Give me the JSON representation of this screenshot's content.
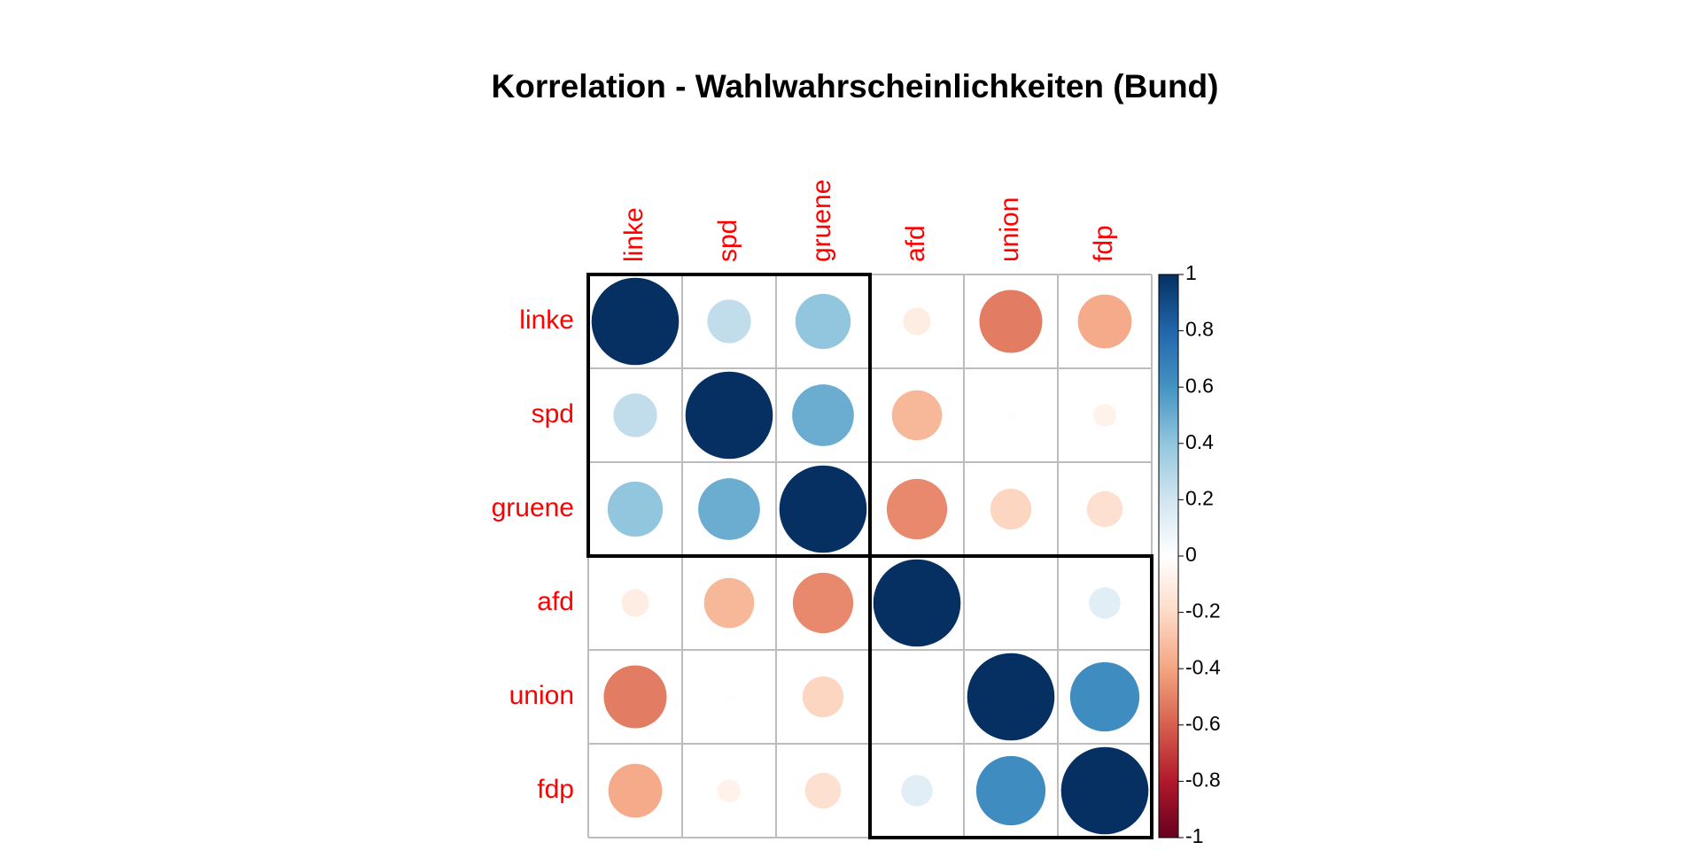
{
  "title": "Korrelation - Wahlwahrscheinlichkeiten (Bund)",
  "chart_data": {
    "type": "heatmap",
    "method": "circle",
    "title": "Korrelation - Wahlwahrscheinlichkeiten (Bund)",
    "variables": [
      "linke",
      "spd",
      "gruene",
      "afd",
      "union",
      "fdp"
    ],
    "matrix": [
      [
        1.0,
        0.25,
        0.4,
        -0.1,
        -0.52,
        -0.38
      ],
      [
        0.25,
        1.0,
        0.5,
        -0.33,
        -0.01,
        -0.07
      ],
      [
        0.4,
        0.5,
        1.0,
        -0.48,
        -0.22,
        -0.17
      ],
      [
        -0.1,
        -0.33,
        -0.48,
        1.0,
        0.0,
        0.13
      ],
      [
        -0.52,
        -0.01,
        -0.22,
        0.0,
        1.0,
        0.63
      ],
      [
        -0.38,
        -0.07,
        -0.17,
        0.13,
        0.63,
        1.0
      ]
    ],
    "clusters": [
      [
        "linke",
        "spd",
        "gruene"
      ],
      [
        "afd",
        "union",
        "fdp"
      ]
    ],
    "colorbar": {
      "range": [
        -1,
        1
      ],
      "ticks": [
        "1",
        "0.8",
        "0.6",
        "0.4",
        "0.2",
        "0",
        "-0.2",
        "-0.4",
        "-0.6",
        "-0.8",
        "-1"
      ],
      "colors": [
        "#67001F",
        "#B2182B",
        "#D6604D",
        "#F4A582",
        "#FDDBC7",
        "#FFFFFF",
        "#D1E5F0",
        "#92C5DE",
        "#4393C3",
        "#2166AC",
        "#053061"
      ]
    },
    "label_color": "#ff0000",
    "grid": true,
    "legend": "right"
  }
}
